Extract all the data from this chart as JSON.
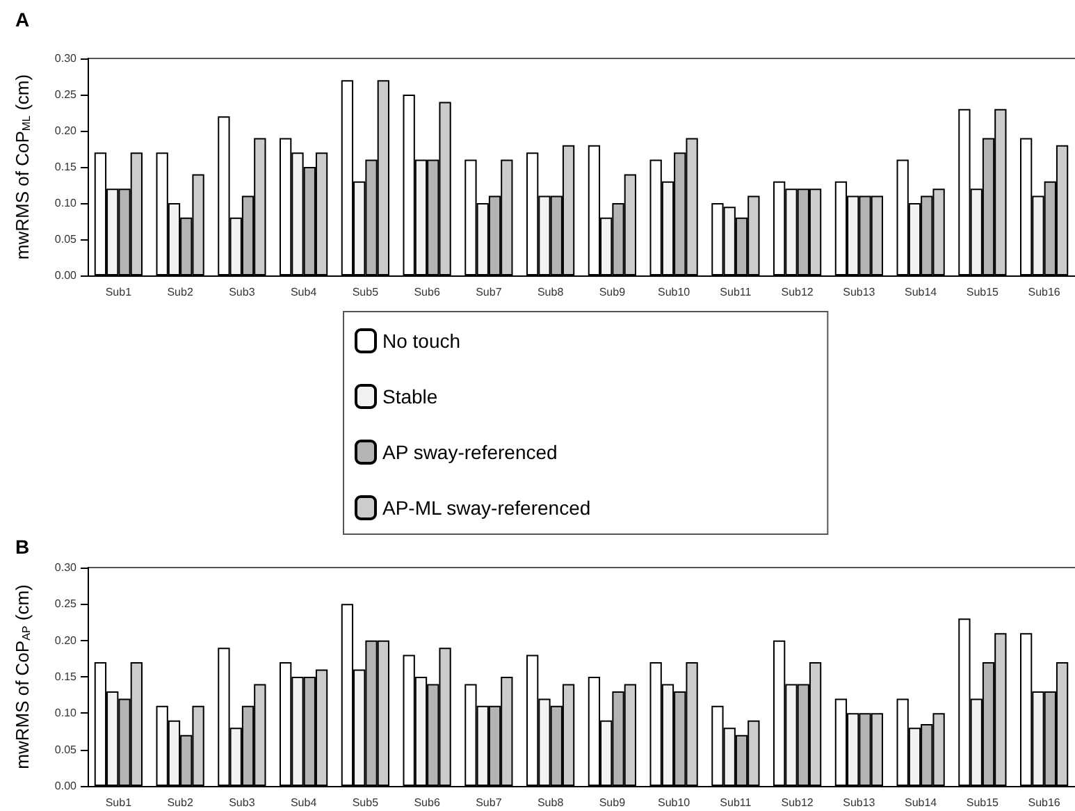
{
  "chart_data": [
    {
      "type": "bar",
      "title": "A",
      "ylabel": "mwRMS of CoP$_{ML}$ (cm)",
      "legend": "bottom",
      "categories": [
        "Sub1",
        "Sub2",
        "Sub3",
        "Sub4",
        "Sub5",
        "Sub6",
        "Sub7",
        "Sub8",
        "Sub9",
        "Sub10",
        "Sub11",
        "Sub12",
        "Sub13",
        "Sub14",
        "Sub15",
        "Sub16"
      ],
      "ylim": [
        0,
        0.3
      ],
      "yticks": [
        {
          "value": 0,
          "label": "0.00"
        },
        {
          "value": 0.05,
          "label": "0.05"
        },
        {
          "value": 0.1,
          "label": "0.10"
        },
        {
          "value": 0.15,
          "label": "0.15"
        },
        {
          "value": 0.2,
          "label": "0.20"
        },
        {
          "value": 0.25,
          "label": "0.25"
        },
        {
          "value": 0.3,
          "label": "0.30"
        }
      ],
      "series": [
        {
          "name": "No touch",
          "color": "#ffffff",
          "values": [
            0.17,
            0.17,
            0.22,
            0.19,
            0.27,
            0.25,
            0.16,
            0.17,
            0.18,
            0.16,
            0.1,
            0.13,
            0.13,
            0.16,
            0.23,
            0.19
          ]
        },
        {
          "name": "Stable",
          "color": "#f2f2f2",
          "values": [
            0.12,
            0.1,
            0.08,
            0.17,
            0.13,
            0.16,
            0.1,
            0.11,
            0.08,
            0.13,
            0.095,
            0.12,
            0.11,
            0.1,
            0.12,
            0.11
          ]
        },
        {
          "name": "AP sway-referenced",
          "color": "#b4b4b4",
          "values": [
            0.12,
            0.08,
            0.11,
            0.15,
            0.16,
            0.16,
            0.11,
            0.11,
            0.1,
            0.17,
            0.08,
            0.12,
            0.11,
            0.11,
            0.19,
            0.13
          ]
        },
        {
          "name": "AP-ML sway-referenced",
          "color": "#cccccc",
          "values": [
            0.17,
            0.14,
            0.19,
            0.17,
            0.27,
            0.24,
            0.16,
            0.18,
            0.14,
            0.19,
            0.11,
            0.12,
            0.11,
            0.12,
            0.23,
            0.18
          ]
        }
      ]
    },
    {
      "type": "bar",
      "title": "B",
      "ylabel": "mwRMS of CoP$_{AP}$ (cm)",
      "categories": [
        "Sub1",
        "Sub2",
        "Sub3",
        "Sub4",
        "Sub5",
        "Sub6",
        "Sub7",
        "Sub8",
        "Sub9",
        "Sub10",
        "Sub11",
        "Sub12",
        "Sub13",
        "Sub14",
        "Sub15",
        "Sub16"
      ],
      "ylim": [
        0,
        0.3
      ],
      "yticks": [
        {
          "value": 0,
          "label": "0.00"
        },
        {
          "value": 0.05,
          "label": "0.05"
        },
        {
          "value": 0.1,
          "label": "0.10"
        },
        {
          "value": 0.15,
          "label": "0.15"
        },
        {
          "value": 0.2,
          "label": "0.20"
        },
        {
          "value": 0.25,
          "label": "0.25"
        },
        {
          "value": 0.3,
          "label": "0.30"
        }
      ],
      "series": [
        {
          "color": "#ffffff",
          "values": [
            0.17,
            0.11,
            0.19,
            0.17,
            0.25,
            0.18,
            0.14,
            0.18,
            0.15,
            0.17,
            0.11,
            0.2,
            0.12,
            0.12,
            0.23,
            0.21
          ]
        },
        {
          "color": "#f2f2f2",
          "values": [
            0.13,
            0.09,
            0.08,
            0.15,
            0.16,
            0.15,
            0.11,
            0.12,
            0.09,
            0.14,
            0.08,
            0.14,
            0.1,
            0.08,
            0.12,
            0.13
          ]
        },
        {
          "color": "#b4b4b4",
          "values": [
            0.12,
            0.07,
            0.11,
            0.15,
            0.2,
            0.14,
            0.11,
            0.11,
            0.13,
            0.13,
            0.07,
            0.14,
            0.1,
            0.085,
            0.17,
            0.13
          ]
        },
        {
          "color": "#cccccc",
          "values": [
            0.17,
            0.11,
            0.14,
            0.16,
            0.2,
            0.19,
            0.15,
            0.14,
            0.14,
            0.17,
            0.09,
            0.17,
            0.1,
            0.1,
            0.21,
            0.17
          ]
        }
      ]
    }
  ]
}
